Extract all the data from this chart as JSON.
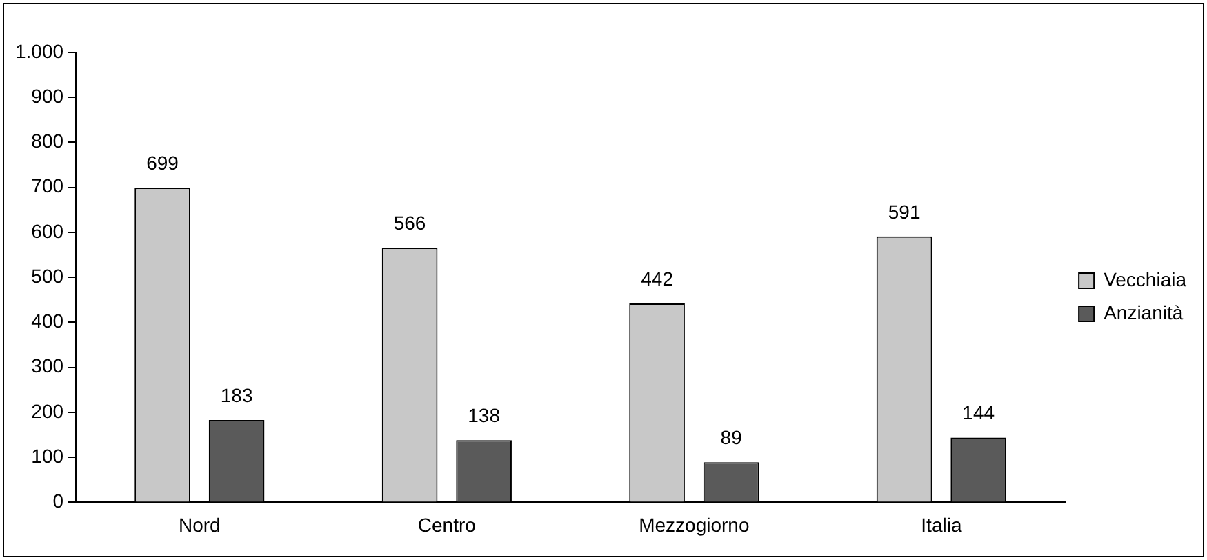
{
  "chart_data": {
    "type": "bar",
    "categories": [
      "Nord",
      "Centro",
      "Mezzogiorno",
      "Italia"
    ],
    "series": [
      {
        "name": "Vecchiaia",
        "color": "#c8c8c8",
        "values": [
          699,
          566,
          442,
          591
        ]
      },
      {
        "name": "Anzianità",
        "color": "#5a5a5a",
        "values": [
          183,
          138,
          89,
          144
        ]
      }
    ],
    "ylim": [
      0,
      1000
    ],
    "yticks": [
      0,
      100,
      200,
      300,
      400,
      500,
      600,
      700,
      800,
      900,
      {
        "value": 1000,
        "label": "1.000"
      }
    ],
    "grid": false,
    "legend": "right",
    "data_labels": true
  }
}
